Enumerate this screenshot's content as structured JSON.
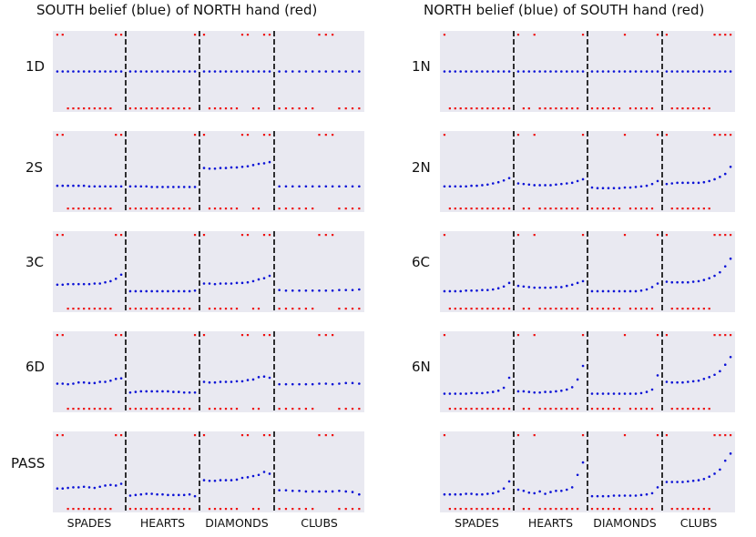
{
  "chart_data": {
    "type": "scatter",
    "columns": [
      {
        "title": "SOUTH belief (blue) of NORTH hand (red)",
        "suits": [
          "SPADES",
          "HEARTS",
          "DIAMONDS",
          "CLUBS"
        ],
        "north_hand": {
          "SPADES": [
            1,
            1,
            0,
            0,
            0,
            0,
            0,
            0,
            0,
            0,
            0,
            1,
            1
          ],
          "HEARTS": [
            0,
            0,
            0,
            0,
            0,
            0,
            0,
            0,
            0,
            0,
            0,
            0,
            1
          ],
          "DIAMONDS": [
            1,
            0,
            0,
            0,
            0,
            0,
            0,
            1,
            1,
            0,
            0,
            1,
            1
          ],
          "CLUBS": [
            0,
            0,
            0,
            0,
            0,
            0,
            1,
            1,
            1,
            0,
            0,
            0,
            0
          ]
        },
        "rows": [
          {
            "label": "1D",
            "belief": {
              "SPADES": [
                0.5,
                0.5,
                0.5,
                0.5,
                0.5,
                0.5,
                0.5,
                0.5,
                0.5,
                0.5,
                0.5,
                0.5,
                0.5
              ],
              "HEARTS": [
                0.5,
                0.5,
                0.5,
                0.5,
                0.5,
                0.5,
                0.5,
                0.5,
                0.5,
                0.5,
                0.5,
                0.5,
                0.5
              ],
              "DIAMONDS": [
                0.5,
                0.5,
                0.5,
                0.5,
                0.5,
                0.5,
                0.5,
                0.5,
                0.5,
                0.5,
                0.5,
                0.5,
                0.5
              ],
              "CLUBS": [
                0.5,
                0.5,
                0.5,
                0.5,
                0.5,
                0.5,
                0.5,
                0.5,
                0.5,
                0.5,
                0.5,
                0.5,
                0.5
              ]
            }
          },
          {
            "label": "2S",
            "belief": {
              "SPADES": [
                0.26,
                0.26,
                0.26,
                0.26,
                0.26,
                0.26,
                0.25,
                0.25,
                0.25,
                0.25,
                0.25,
                0.25,
                0.25
              ],
              "HEARTS": [
                0.25,
                0.25,
                0.25,
                0.25,
                0.24,
                0.24,
                0.24,
                0.24,
                0.24,
                0.24,
                0.24,
                0.24,
                0.24
              ],
              "DIAMONDS": [
                0.56,
                0.55,
                0.55,
                0.56,
                0.56,
                0.57,
                0.57,
                0.58,
                0.59,
                0.61,
                0.63,
                0.64,
                0.66
              ],
              "CLUBS": [
                0.25,
                0.25,
                0.25,
                0.25,
                0.25,
                0.25,
                0.25,
                0.25,
                0.25,
                0.25,
                0.25,
                0.25,
                0.25
              ]
            }
          },
          {
            "label": "3C",
            "belief": {
              "SPADES": [
                0.28,
                0.28,
                0.29,
                0.29,
                0.29,
                0.29,
                0.29,
                0.3,
                0.3,
                0.32,
                0.34,
                0.38,
                0.45
              ],
              "HEARTS": [
                0.17,
                0.17,
                0.17,
                0.17,
                0.17,
                0.17,
                0.17,
                0.17,
                0.17,
                0.17,
                0.17,
                0.17,
                0.18
              ],
              "DIAMONDS": [
                0.3,
                0.3,
                0.29,
                0.3,
                0.3,
                0.3,
                0.31,
                0.31,
                0.32,
                0.34,
                0.37,
                0.39,
                0.43
              ],
              "CLUBS": [
                0.19,
                0.18,
                0.18,
                0.18,
                0.18,
                0.18,
                0.18,
                0.18,
                0.18,
                0.19,
                0.19,
                0.19,
                0.2
              ]
            }
          },
          {
            "label": "6D",
            "belief": {
              "SPADES": [
                0.3,
                0.3,
                0.29,
                0.3,
                0.32,
                0.32,
                0.31,
                0.31,
                0.33,
                0.33,
                0.35,
                0.38,
                0.39
              ],
              "HEARTS": [
                0.15,
                0.16,
                0.17,
                0.17,
                0.17,
                0.17,
                0.17,
                0.17,
                0.16,
                0.16,
                0.15,
                0.15,
                0.15
              ],
              "DIAMONDS": [
                0.33,
                0.32,
                0.32,
                0.33,
                0.33,
                0.33,
                0.34,
                0.34,
                0.36,
                0.37,
                0.41,
                0.42,
                0.4
              ],
              "CLUBS": [
                0.29,
                0.29,
                0.29,
                0.29,
                0.29,
                0.29,
                0.3,
                0.3,
                0.29,
                0.3,
                0.31,
                0.31,
                0.3
              ]
            }
          },
          {
            "label": "PASS",
            "belief": {
              "SPADES": [
                0.22,
                0.22,
                0.23,
                0.24,
                0.24,
                0.25,
                0.24,
                0.23,
                0.25,
                0.27,
                0.28,
                0.27,
                0.3
              ],
              "HEARTS": [
                0.1,
                0.11,
                0.12,
                0.13,
                0.13,
                0.12,
                0.12,
                0.11,
                0.11,
                0.11,
                0.11,
                0.12,
                0.09
              ],
              "DIAMONDS": [
                0.36,
                0.35,
                0.35,
                0.36,
                0.36,
                0.36,
                0.37,
                0.4,
                0.41,
                0.43,
                0.45,
                0.5,
                0.47
              ],
              "CLUBS": [
                0.19,
                0.19,
                0.18,
                0.18,
                0.17,
                0.17,
                0.17,
                0.17,
                0.17,
                0.18,
                0.17,
                0.16,
                0.12
              ]
            }
          }
        ]
      },
      {
        "title": "NORTH belief (blue) of SOUTH hand (red)",
        "suits": [
          "SPADES",
          "HEARTS",
          "DIAMONDS",
          "CLUBS"
        ],
        "south_hand": {
          "SPADES": [
            1,
            0,
            0,
            0,
            0,
            0,
            0,
            0,
            0,
            0,
            0,
            0,
            0
          ],
          "HEARTS": [
            1,
            0,
            0,
            1,
            0,
            0,
            0,
            0,
            0,
            0,
            0,
            0,
            1
          ],
          "DIAMONDS": [
            0,
            0,
            0,
            0,
            0,
            0,
            1,
            0,
            0,
            0,
            0,
            0,
            1
          ],
          "CLUBS": [
            1,
            0,
            0,
            0,
            0,
            0,
            0,
            0,
            0,
            1,
            1,
            1,
            1
          ]
        },
        "rows": [
          {
            "label": "1N",
            "belief": {
              "SPADES": [
                0.5,
                0.5,
                0.5,
                0.5,
                0.5,
                0.5,
                0.5,
                0.5,
                0.5,
                0.5,
                0.5,
                0.5,
                0.5
              ],
              "HEARTS": [
                0.5,
                0.5,
                0.5,
                0.5,
                0.5,
                0.5,
                0.5,
                0.5,
                0.5,
                0.5,
                0.5,
                0.5,
                0.5
              ],
              "DIAMONDS": [
                0.5,
                0.5,
                0.5,
                0.5,
                0.5,
                0.5,
                0.5,
                0.5,
                0.5,
                0.5,
                0.5,
                0.5,
                0.5
              ],
              "CLUBS": [
                0.5,
                0.5,
                0.5,
                0.5,
                0.5,
                0.5,
                0.5,
                0.5,
                0.5,
                0.5,
                0.5,
                0.5,
                0.5
              ]
            }
          },
          {
            "label": "2N",
            "belief": {
              "SPADES": [
                0.25,
                0.25,
                0.25,
                0.25,
                0.25,
                0.26,
                0.26,
                0.27,
                0.28,
                0.3,
                0.32,
                0.35,
                0.39
              ],
              "HEARTS": [
                0.3,
                0.29,
                0.28,
                0.27,
                0.27,
                0.27,
                0.27,
                0.28,
                0.29,
                0.3,
                0.31,
                0.34,
                0.37
              ],
              "DIAMONDS": [
                0.23,
                0.22,
                0.22,
                0.22,
                0.22,
                0.22,
                0.23,
                0.23,
                0.24,
                0.25,
                0.26,
                0.29,
                0.34
              ],
              "CLUBS": [
                0.29,
                0.3,
                0.31,
                0.31,
                0.31,
                0.31,
                0.31,
                0.32,
                0.34,
                0.37,
                0.41,
                0.46,
                0.58
              ]
            }
          },
          {
            "label": "6C",
            "belief": {
              "SPADES": [
                0.17,
                0.17,
                0.17,
                0.17,
                0.18,
                0.18,
                0.18,
                0.19,
                0.19,
                0.2,
                0.22,
                0.25,
                0.31
              ],
              "HEARTS": [
                0.26,
                0.25,
                0.24,
                0.23,
                0.23,
                0.23,
                0.23,
                0.24,
                0.24,
                0.26,
                0.28,
                0.31,
                0.34
              ],
              "DIAMONDS": [
                0.17,
                0.17,
                0.17,
                0.17,
                0.17,
                0.17,
                0.17,
                0.17,
                0.17,
                0.18,
                0.2,
                0.24,
                0.3
              ],
              "CLUBS": [
                0.33,
                0.32,
                0.32,
                0.32,
                0.32,
                0.33,
                0.34,
                0.36,
                0.39,
                0.43,
                0.49,
                0.59,
                0.72
              ]
            }
          },
          {
            "label": "6N",
            "belief": {
              "SPADES": [
                0.13,
                0.13,
                0.13,
                0.13,
                0.13,
                0.14,
                0.14,
                0.14,
                0.15,
                0.16,
                0.18,
                0.23,
                0.4
              ],
              "HEARTS": [
                0.17,
                0.17,
                0.16,
                0.15,
                0.15,
                0.16,
                0.16,
                0.17,
                0.18,
                0.2,
                0.24,
                0.37,
                0.6
              ],
              "DIAMONDS": [
                0.13,
                0.13,
                0.13,
                0.13,
                0.13,
                0.13,
                0.13,
                0.13,
                0.13,
                0.14,
                0.16,
                0.2,
                0.44
              ],
              "CLUBS": [
                0.33,
                0.32,
                0.32,
                0.32,
                0.33,
                0.34,
                0.35,
                0.38,
                0.41,
                0.45,
                0.51,
                0.62,
                0.75
              ]
            }
          },
          {
            "label": "",
            "belief": {
              "SPADES": [
                0.12,
                0.12,
                0.12,
                0.12,
                0.13,
                0.13,
                0.12,
                0.12,
                0.13,
                0.14,
                0.17,
                0.22,
                0.34
              ],
              "HEARTS": [
                0.2,
                0.18,
                0.15,
                0.14,
                0.17,
                0.13,
                0.16,
                0.18,
                0.18,
                0.2,
                0.24,
                0.45,
                0.66
              ],
              "DIAMONDS": [
                0.09,
                0.09,
                0.09,
                0.09,
                0.1,
                0.1,
                0.1,
                0.1,
                0.1,
                0.11,
                0.12,
                0.14,
                0.24
              ],
              "CLUBS": [
                0.33,
                0.33,
                0.33,
                0.33,
                0.34,
                0.35,
                0.36,
                0.38,
                0.42,
                0.47,
                0.54,
                0.69,
                0.81
              ]
            }
          }
        ]
      }
    ],
    "ylim": [
      0,
      1
    ],
    "grid": false,
    "colors": {
      "belief": "#0b12d6",
      "hand": "#ee1111",
      "panel_bg": "#e9e9f1",
      "divider": "#000000"
    }
  }
}
